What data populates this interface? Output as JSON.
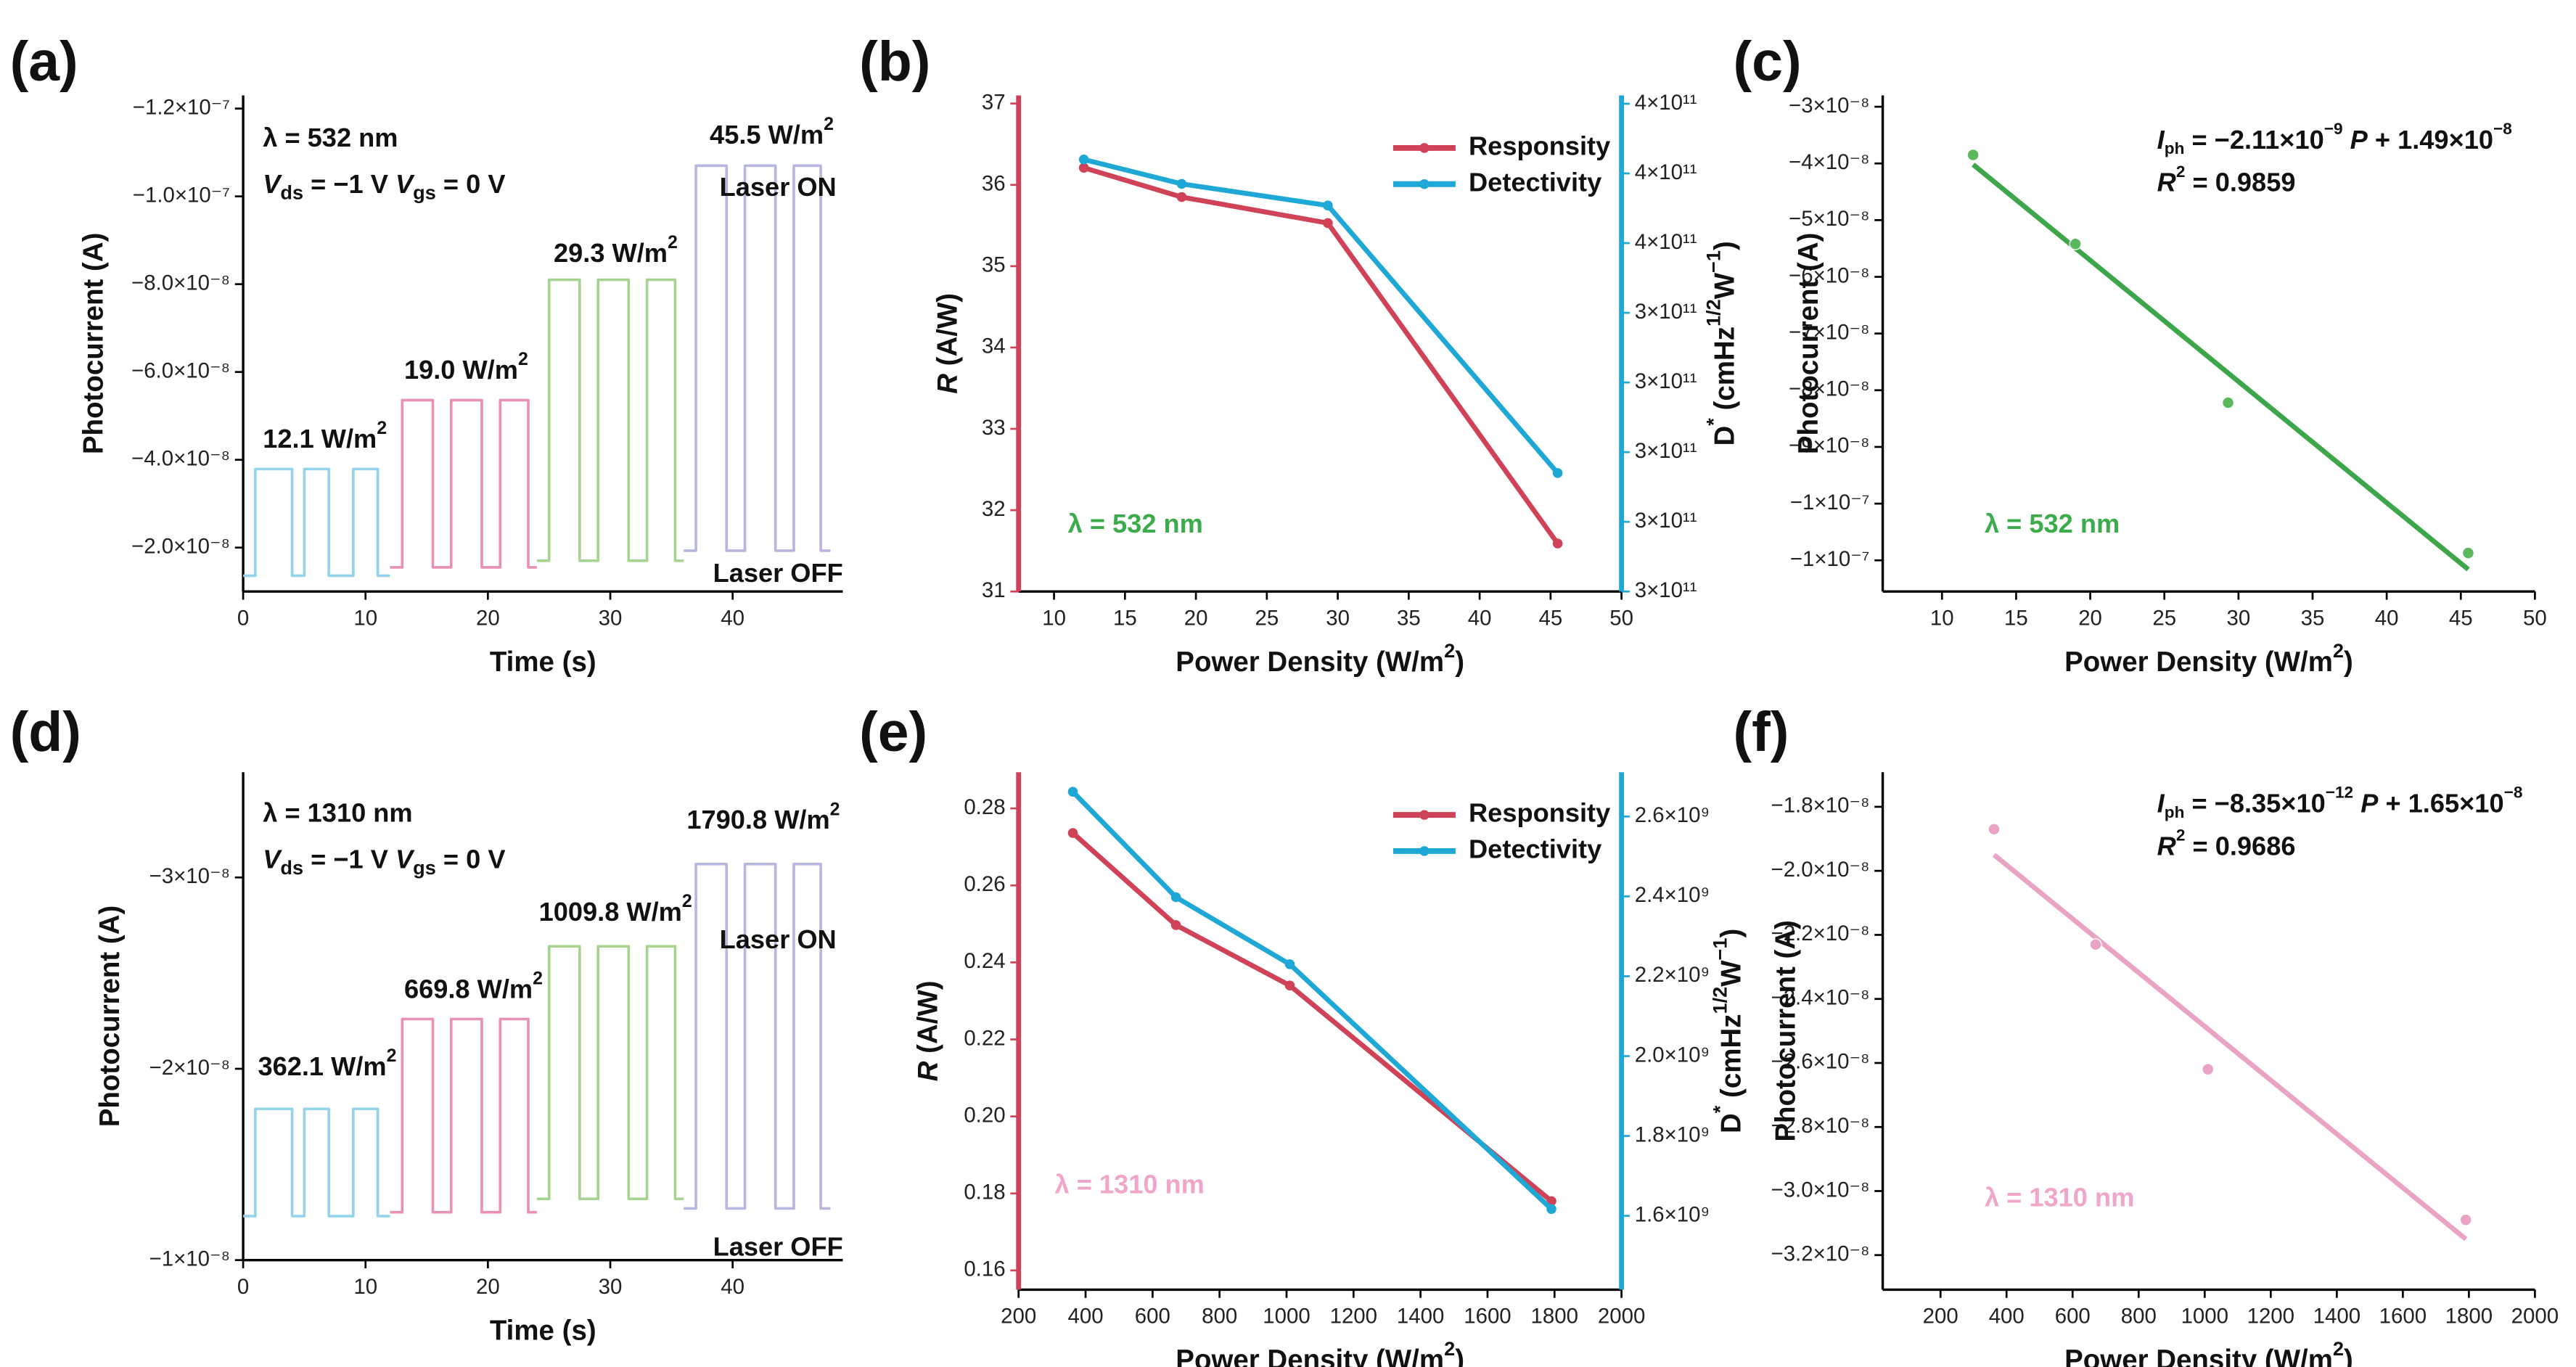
{
  "chart_data": [
    {
      "type": "line",
      "panel_label": "(a)",
      "xlabel": "Time (s)",
      "ylabel": "Photocurrent (A)",
      "xlim": [
        0,
        49
      ],
      "xticks": [
        0,
        10,
        20,
        30,
        40
      ],
      "ylim": [
        -1e-08,
        -1.23e-07
      ],
      "yticks": [
        {
          "value": -2e-08,
          "label": "−2.0×10⁻⁸"
        },
        {
          "value": -4e-08,
          "label": "−4.0×10⁻⁸"
        },
        {
          "value": -6e-08,
          "label": "−6.0×10⁻⁸"
        },
        {
          "value": -8e-08,
          "label": "−8.0×10⁻⁸"
        },
        {
          "value": -1e-07,
          "label": "−1.0×10⁻⁷"
        },
        {
          "value": -1.2e-07,
          "label": "−1.2×10⁻⁷"
        }
      ],
      "series": [
        {
          "color": "#93d3ec",
          "x": [
            0,
            1,
            1,
            4,
            4,
            5,
            5,
            7,
            7,
            9,
            9,
            11,
            11,
            12
          ],
          "values": [
            -1.36e-08,
            -1.36e-08,
            -3.79e-08,
            -3.79e-08,
            -1.36e-08,
            -1.36e-08,
            -3.79e-08,
            -3.79e-08,
            -1.36e-08,
            -1.36e-08,
            -3.79e-08,
            -3.79e-08,
            -1.36e-08,
            -1.36e-08
          ]
        },
        {
          "color": "#e890b6",
          "x": [
            12,
            13,
            13,
            15.5,
            15.5,
            17,
            17,
            19.5,
            19.5,
            21,
            21,
            23.3,
            23.3,
            24
          ],
          "values": [
            -1.55e-08,
            -1.55e-08,
            -5.36e-08,
            -5.36e-08,
            -1.55e-08,
            -1.55e-08,
            -5.36e-08,
            -5.36e-08,
            -1.55e-08,
            -1.55e-08,
            -5.36e-08,
            -5.36e-08,
            -1.55e-08,
            -1.55e-08
          ]
        },
        {
          "color": "#a6d38f",
          "x": [
            24,
            25,
            25,
            27.5,
            27.5,
            29,
            29,
            31.5,
            31.5,
            33,
            33,
            35.3,
            35.3,
            36
          ],
          "values": [
            -1.7e-08,
            -1.7e-08,
            -8.1e-08,
            -8.1e-08,
            -1.7e-08,
            -1.7e-08,
            -8.1e-08,
            -8.1e-08,
            -1.7e-08,
            -1.7e-08,
            -8.1e-08,
            -8.1e-08,
            -1.7e-08,
            -1.7e-08
          ]
        },
        {
          "color": "#b7b6de",
          "x": [
            36,
            37,
            37,
            39.5,
            39.5,
            41,
            41,
            43.5,
            43.5,
            45,
            45,
            47.2,
            47.2,
            48
          ],
          "values": [
            -1.93e-08,
            -1.93e-08,
            -1.07e-07,
            -1.07e-07,
            -1.93e-08,
            -1.93e-08,
            -1.07e-07,
            -1.07e-07,
            -1.93e-08,
            -1.93e-08,
            -1.07e-07,
            -1.07e-07,
            -1.93e-08,
            -1.93e-08
          ]
        }
      ],
      "annotations": [
        {
          "text": "λ = 532 nm"
        },
        {
          "text": [
            {
              "i": "V"
            },
            {
              "sub": "ds"
            },
            " = −1 V ",
            {
              "i": "V"
            },
            {
              "sub": "gs"
            },
            " = 0 V"
          ]
        },
        {
          "text": [
            "12.1 W/m",
            {
              "sup": "2"
            }
          ]
        },
        {
          "text": [
            "19.0 W/m",
            {
              "sup": "2"
            }
          ]
        },
        {
          "text": [
            "29.3 W/m",
            {
              "sup": "2"
            }
          ]
        },
        {
          "text": [
            "45.5 W/m",
            {
              "sup": "2"
            }
          ]
        },
        {
          "text": "Laser ON"
        },
        {
          "text": "Laser OFF"
        }
      ]
    },
    {
      "type": "line",
      "panel_label": "(b)",
      "xlabel": [
        "Power Density (W/m",
        {
          "sup": "2"
        },
        ")"
      ],
      "ylabel": [
        {
          "i": "R"
        },
        " (A/W)"
      ],
      "y2label": [
        "D",
        {
          "sup": "*"
        },
        " (cmHz",
        {
          "sup": "1/2"
        },
        "W",
        {
          "sup": "−1"
        },
        ")"
      ],
      "y_color": "#cf4257",
      "y2_color": "#1fa8d6",
      "markers": true,
      "legend": "upper right",
      "xlim": [
        7.5,
        50
      ],
      "xticks": [
        10,
        15,
        20,
        25,
        30,
        35,
        40,
        45,
        50
      ],
      "ylim": [
        31,
        37.1
      ],
      "yticks": [
        31,
        32,
        33,
        34,
        35,
        36,
        37
      ],
      "y2lim": [
        300000000000.0,
        371200000000.0
      ],
      "y2ticks": [
        {
          "value": 300000000000.0,
          "label": "3×10¹¹"
        },
        {
          "value": 310000000000.0,
          "label": "3×10¹¹"
        },
        {
          "value": 320000000000.0,
          "label": "3×10¹¹"
        },
        {
          "value": 330000000000.0,
          "label": "3×10¹¹"
        },
        {
          "value": 340000000000.0,
          "label": "3×10¹¹"
        },
        {
          "value": 350000000000.0,
          "label": "4×10¹¹"
        },
        {
          "value": 360000000000.0,
          "label": "4×10¹¹"
        },
        {
          "value": 370000000000.0,
          "label": "4×10¹¹"
        }
      ],
      "x": [
        12.1,
        19.0,
        29.3,
        45.5
      ],
      "series": [
        {
          "name": "Responsity",
          "color": "#cf4257",
          "values": [
            36.21,
            35.85,
            35.53,
            31.59
          ]
        },
        {
          "name": "Detectivity",
          "color": "#1fa8d6",
          "axis": "y2",
          "values": [
            362000000000.0,
            358500000000.0,
            355400000000.0,
            317000000000.0
          ]
        }
      ],
      "annotations": [
        {
          "text": "λ = 532 nm",
          "color": "#3cab4b"
        }
      ]
    },
    {
      "type": "scatter",
      "panel_label": "(c)",
      "xlabel": [
        "Power Density (W/m",
        {
          "sup": "2"
        },
        ")"
      ],
      "ylabel": "Photocurrent (A)",
      "xlim": [
        6,
        50
      ],
      "xticks": [
        10,
        15,
        20,
        25,
        30,
        35,
        40,
        45,
        50
      ],
      "ylim": [
        -1.155e-07,
        -2.8e-08
      ],
      "yticks": [
        {
          "value": -3e-08,
          "label": "−3×10⁻⁸"
        },
        {
          "value": -4e-08,
          "label": "−4×10⁻⁸"
        },
        {
          "value": -5e-08,
          "label": "−5×10⁻⁸"
        },
        {
          "value": -6e-08,
          "label": "−6×10⁻⁸"
        },
        {
          "value": -7e-08,
          "label": "−7×10⁻⁸"
        },
        {
          "value": -8e-08,
          "label": "−8×10⁻⁸"
        },
        {
          "value": -9e-08,
          "label": "−9×10⁻⁸"
        },
        {
          "value": -1e-07,
          "label": "−1×10⁻⁷"
        },
        {
          "value": -1.1e-07,
          "label": "−1×10⁻⁷"
        }
      ],
      "x": [
        12.1,
        19.0,
        29.3,
        45.5
      ],
      "values": [
        -3.85e-08,
        -5.42e-08,
        -8.22e-08,
        -1.087e-07
      ],
      "color": "#5cb85c",
      "fit": {
        "color": "#3ea64a",
        "x": [
          12.1,
          45.5
        ],
        "values": [
          -4.02e-08,
          -1.116e-07
        ]
      },
      "annotations": [
        {
          "text": [
            {
              "i": "I"
            },
            {
              "sub": "ph"
            },
            " = −2.11×10",
            {
              "sup": "−9"
            },
            " ",
            {
              "i": "P"
            },
            " + 1.49×10",
            {
              "sup": "−8"
            }
          ]
        },
        {
          "text": [
            {
              "i": "R"
            },
            {
              "sup": "2"
            },
            " = 0.9859"
          ]
        },
        {
          "text": "λ = 532 nm",
          "color": "#3cab4b"
        }
      ]
    },
    {
      "type": "line",
      "panel_label": "(d)",
      "xlabel": "Time (s)",
      "ylabel": "Photocurrent (A)",
      "xlim": [
        0,
        49
      ],
      "xticks": [
        0,
        10,
        20,
        30,
        40
      ],
      "ylim": [
        -1e-08,
        -3.55e-08
      ],
      "yticks": [
        {
          "value": -1e-08,
          "label": "−1×10⁻⁸"
        },
        {
          "value": -2e-08,
          "label": "−2×10⁻⁸"
        },
        {
          "value": -3e-08,
          "label": "−3×10⁻⁸"
        }
      ],
      "series": [
        {
          "color": "#93d3ec",
          "x": [
            0,
            1,
            1,
            4,
            4,
            5,
            5,
            7,
            7,
            9,
            9,
            11,
            11,
            12
          ],
          "values": [
            -1.23e-08,
            -1.23e-08,
            -1.79e-08,
            -1.79e-08,
            -1.23e-08,
            -1.23e-08,
            -1.79e-08,
            -1.79e-08,
            -1.23e-08,
            -1.23e-08,
            -1.79e-08,
            -1.79e-08,
            -1.23e-08,
            -1.23e-08
          ]
        },
        {
          "color": "#e890b6",
          "x": [
            12,
            13,
            13,
            15.5,
            15.5,
            17,
            17,
            19.5,
            19.5,
            21,
            21,
            23.3,
            23.3,
            24
          ],
          "values": [
            -1.25e-08,
            -1.25e-08,
            -2.26e-08,
            -2.26e-08,
            -1.25e-08,
            -1.25e-08,
            -2.26e-08,
            -2.26e-08,
            -1.25e-08,
            -1.25e-08,
            -2.26e-08,
            -2.26e-08,
            -1.25e-08,
            -1.25e-08
          ]
        },
        {
          "color": "#a6d38f",
          "x": [
            24,
            25,
            25,
            27.5,
            27.5,
            29,
            29,
            31.5,
            31.5,
            33,
            33,
            35.3,
            35.3,
            36
          ],
          "values": [
            -1.32e-08,
            -1.32e-08,
            -2.64e-08,
            -2.64e-08,
            -1.32e-08,
            -1.32e-08,
            -2.64e-08,
            -2.64e-08,
            -1.32e-08,
            -1.32e-08,
            -2.64e-08,
            -2.64e-08,
            -1.32e-08,
            -1.32e-08
          ]
        },
        {
          "color": "#b7b6de",
          "x": [
            36,
            37,
            37,
            39.5,
            39.5,
            41,
            41,
            43.5,
            43.5,
            45,
            45,
            47.2,
            47.2,
            48
          ],
          "values": [
            -1.27e-08,
            -1.27e-08,
            -3.07e-08,
            -3.07e-08,
            -1.27e-08,
            -1.27e-08,
            -3.07e-08,
            -3.07e-08,
            -1.27e-08,
            -1.27e-08,
            -3.07e-08,
            -3.07e-08,
            -1.27e-08,
            -1.27e-08
          ]
        }
      ],
      "annotations": [
        {
          "text": "λ = 1310 nm"
        },
        {
          "text": [
            {
              "i": "V"
            },
            {
              "sub": "ds"
            },
            " = −1 V ",
            {
              "i": "V"
            },
            {
              "sub": "gs"
            },
            " = 0 V"
          ]
        },
        {
          "text": [
            "362.1 W/m",
            {
              "sup": "2"
            }
          ]
        },
        {
          "text": [
            "669.8 W/m",
            {
              "sup": "2"
            }
          ]
        },
        {
          "text": [
            "1009.8 W/m",
            {
              "sup": "2"
            }
          ]
        },
        {
          "text": [
            "1790.8 W/m",
            {
              "sup": "2"
            }
          ]
        },
        {
          "text": "Laser ON"
        },
        {
          "text": "Laser OFF"
        }
      ]
    },
    {
      "type": "line",
      "panel_label": "(e)",
      "xlabel": [
        "Power Density (W/m",
        {
          "sup": "2"
        },
        ")"
      ],
      "ylabel": [
        {
          "i": "R"
        },
        " (A/W)"
      ],
      "y2label": [
        "D",
        {
          "sup": "*"
        },
        " (cmHz",
        {
          "sup": "1/2"
        },
        "W",
        {
          "sup": "−1"
        },
        ")"
      ],
      "y_color": "#cf4257",
      "y2_color": "#1fa8d6",
      "markers": true,
      "legend": "upper right",
      "xlim": [
        200,
        2000
      ],
      "xticks": [
        200,
        400,
        600,
        800,
        1000,
        1200,
        1400,
        1600,
        1800,
        2000
      ],
      "ylim": [
        0.155,
        0.2894
      ],
      "yticks": [
        0.16,
        0.18,
        {
          "value": 0.2,
          "label": "0.20"
        },
        0.22,
        0.24,
        0.26,
        0.28
      ],
      "y2lim": [
        1415000000.0,
        2711000000.0
      ],
      "y2ticks": [
        {
          "value": 1600000000.0,
          "label": "1.6×10⁹"
        },
        {
          "value": 1800000000.0,
          "label": "1.8×10⁹"
        },
        {
          "value": 2000000000.0,
          "label": "2.0×10⁹"
        },
        {
          "value": 2200000000.0,
          "label": "2.2×10⁹"
        },
        {
          "value": 2400000000.0,
          "label": "2.4×10⁹"
        },
        {
          "value": 2600000000.0,
          "label": "2.6×10⁹"
        }
      ],
      "x": [
        362.1,
        669.8,
        1009.8,
        1790.8
      ],
      "series": [
        {
          "name": "Responsity",
          "color": "#cf4257",
          "values": [
            0.2736,
            0.2497,
            0.234,
            0.178
          ]
        },
        {
          "name": "Detectivity",
          "color": "#1fa8d6",
          "axis": "y2",
          "values": [
            2662000000.0,
            2398000000.0,
            2230000000.0,
            1617000000.0
          ]
        }
      ],
      "annotations": [
        {
          "text": "λ = 1310 nm",
          "color": "#f0a6c8"
        }
      ]
    },
    {
      "type": "scatter",
      "panel_label": "(f)",
      "xlabel": [
        "Power Density (W/m",
        {
          "sup": "2"
        },
        ")"
      ],
      "ylabel": "Photocurrent (A)",
      "xlim": [
        25,
        2000
      ],
      "xticks": [
        200,
        400,
        600,
        800,
        1000,
        1200,
        1400,
        1600,
        1800,
        2000
      ],
      "ylim": [
        -3.308e-08,
        -1.692e-08
      ],
      "yticks": [
        {
          "value": -1.8e-08,
          "label": "−1.8×10⁻⁸"
        },
        {
          "value": -2e-08,
          "label": "−2.0×10⁻⁸"
        },
        {
          "value": -2.2e-08,
          "label": "−2.2×10⁻⁸"
        },
        {
          "value": -2.4e-08,
          "label": "−2.4×10⁻⁸"
        },
        {
          "value": -2.6e-08,
          "label": "−2.6×10⁻⁸"
        },
        {
          "value": -2.8e-08,
          "label": "−2.8×10⁻⁸"
        },
        {
          "value": -3e-08,
          "label": "−3.0×10⁻⁸"
        },
        {
          "value": -3.2e-08,
          "label": "−3.2×10⁻⁸"
        }
      ],
      "x": [
        362.1,
        669.8,
        1009.8,
        1790.8
      ],
      "values": [
        -1.87e-08,
        -2.23e-08,
        -2.62e-08,
        -3.09e-08
      ],
      "color": "#eaa3c5",
      "fit": {
        "color": "#eaa3c5",
        "x": [
          362.1,
          1790.8
        ],
        "values": [
          -1.95e-08,
          -3.15e-08
        ]
      },
      "annotations": [
        {
          "text": [
            {
              "i": "I"
            },
            {
              "sub": "ph"
            },
            " = −8.35×10",
            {
              "sup": "−12"
            },
            " ",
            {
              "i": "P"
            },
            " + 1.65×10",
            {
              "sup": "−8"
            }
          ]
        },
        {
          "text": [
            {
              "i": "R"
            },
            {
              "sup": "2"
            },
            " = 0.9686"
          ]
        },
        {
          "text": "λ = 1310 nm",
          "color": "#f0a6c8"
        }
      ]
    }
  ]
}
